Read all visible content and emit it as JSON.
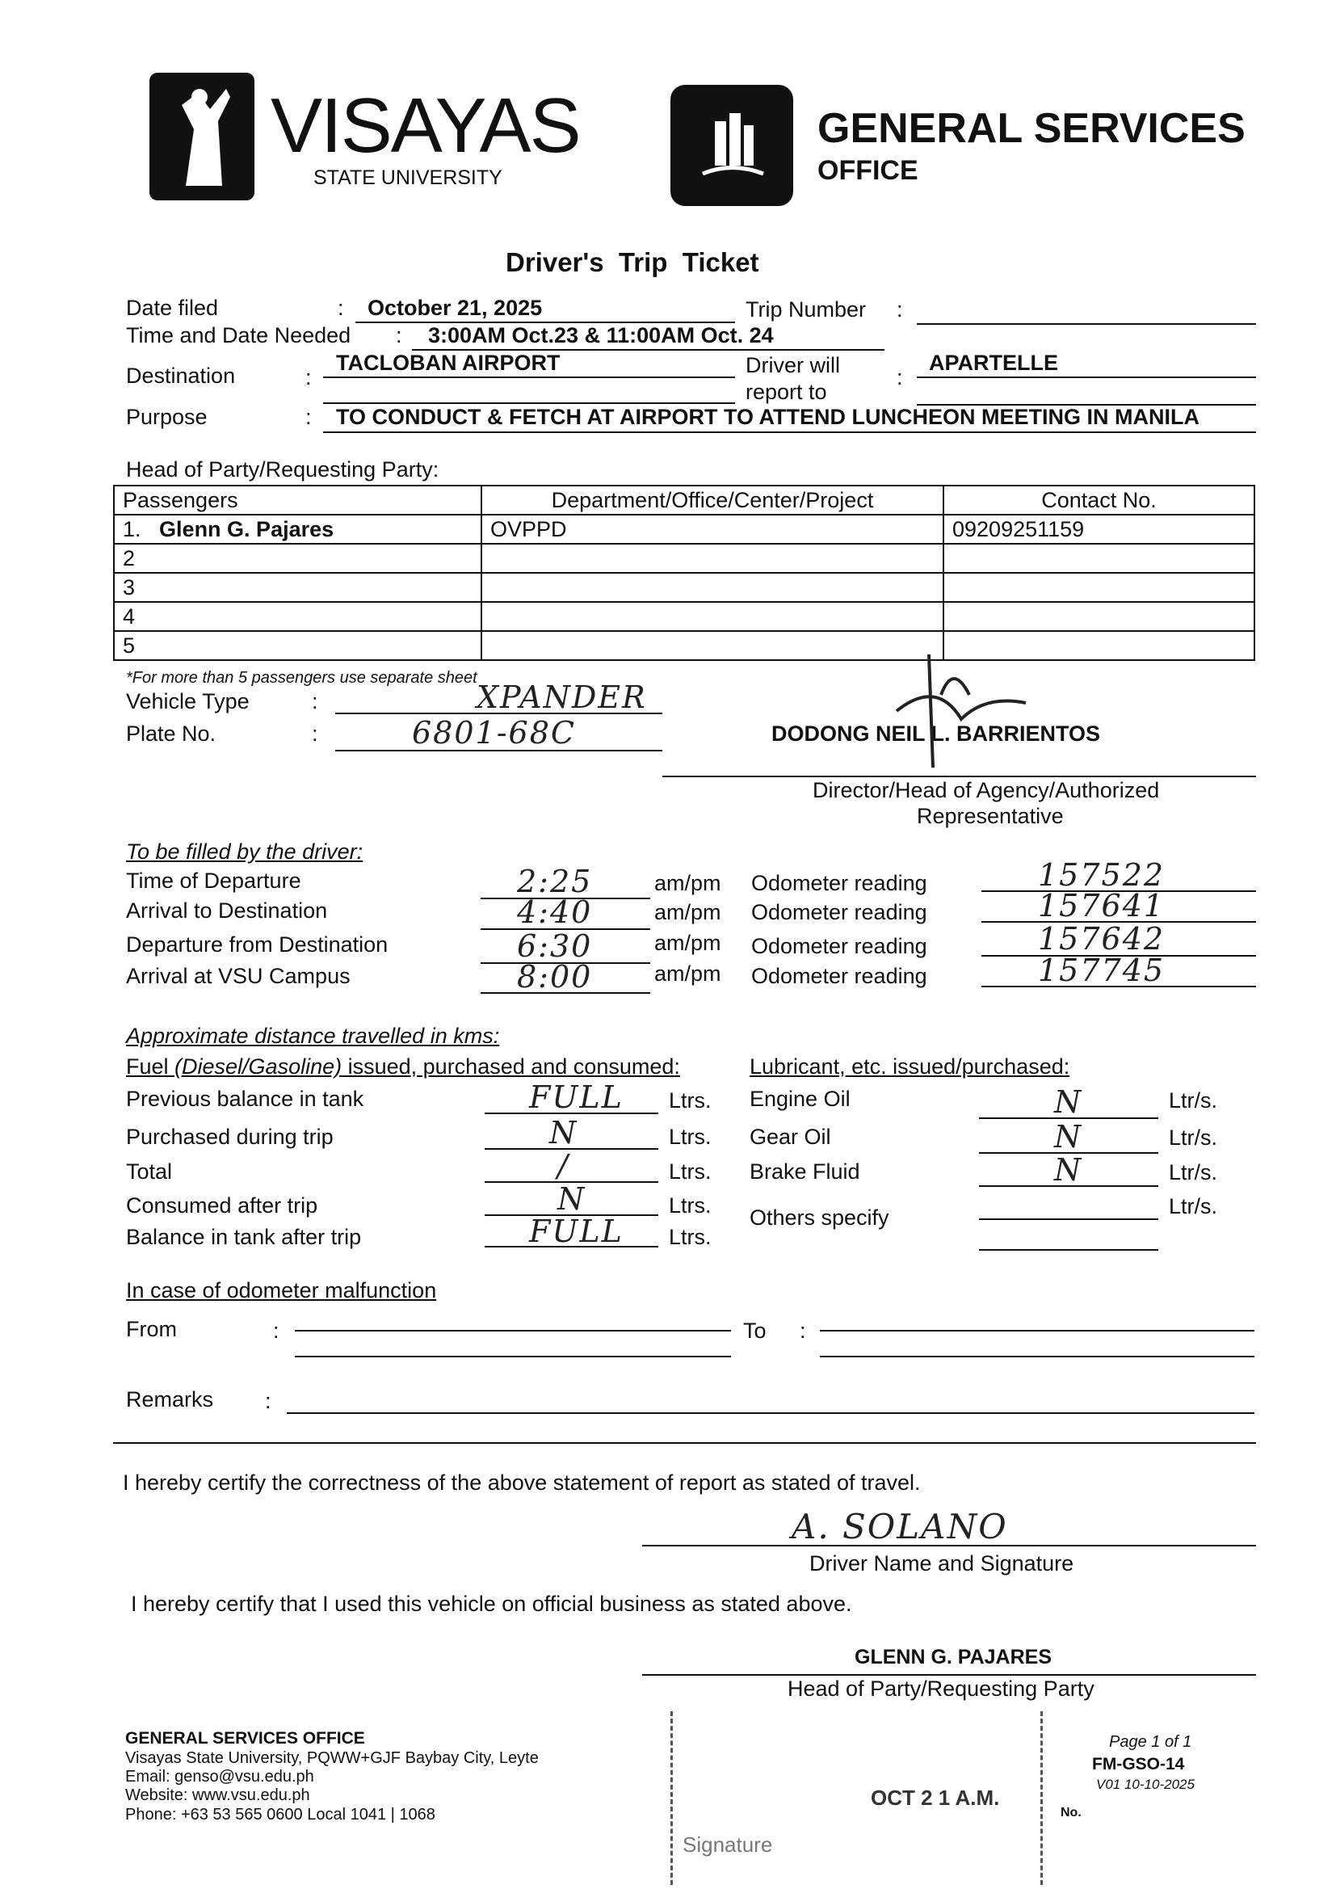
{
  "header": {
    "university_name": "VISAYAS",
    "university_sub": "STATE UNIVERSITY",
    "office_name": "GENERAL SERVICES",
    "office_sub": "OFFICE"
  },
  "title": "Driver's  Trip  Ticket",
  "request": {
    "date_filed_label": "Date filed",
    "date_filed": "October 21, 2025",
    "trip_number_label": "Trip Number",
    "trip_number": "",
    "time_needed_label": "Time and Date Needed",
    "time_needed": "3:00AM Oct.23 & 11:00AM Oct. 24",
    "destination_label": "Destination",
    "destination": "TACLOBAN AIRPORT",
    "report_to_label_1": "Driver will",
    "report_to_label_2": "report to",
    "report_to": "APARTELLE",
    "purpose_label": "Purpose",
    "purpose": "TO CONDUCT & FETCH AT AIRPORT TO ATTEND LUNCHEON MEETING IN MANILA",
    "colon": ":"
  },
  "passengers": {
    "heading": "Head of Party/Requesting Party:",
    "columns": [
      "Passengers",
      "Department/Office/Center/Project",
      "Contact No."
    ],
    "rows": [
      {
        "no": "1.",
        "name": "Glenn G. Pajares",
        "dept": "OVPPD",
        "contact": "09209251159"
      },
      {
        "no": "2",
        "name": "",
        "dept": "",
        "contact": ""
      },
      {
        "no": "3",
        "name": "",
        "dept": "",
        "contact": ""
      },
      {
        "no": "4",
        "name": "",
        "dept": "",
        "contact": ""
      },
      {
        "no": "5",
        "name": "",
        "dept": "",
        "contact": ""
      }
    ],
    "note": "*For more than 5 passengers use separate sheet"
  },
  "vehicle": {
    "type_label": "Vehicle Type",
    "type": "XPANDER",
    "plate_label": "Plate No.",
    "plate": "6801-68C"
  },
  "approver": {
    "name": "DODONG NEIL L. BARRIENTOS",
    "title_1": "Director/Head of Agency/Authorized",
    "title_2": "Representative"
  },
  "driver_section": {
    "heading": "To be filled by the driver:",
    "ampm": "am/pm",
    "odometer_label": "Odometer reading",
    "rows": [
      {
        "label": "Time of Departure",
        "time": "2:25",
        "odometer": "157522"
      },
      {
        "label": "Arrival to Destination",
        "time": "4:40",
        "odometer": "157641"
      },
      {
        "label": "Departure from Destination",
        "time": "6:30",
        "odometer": "157642"
      },
      {
        "label": "Arrival at VSU Campus",
        "time": "8:00",
        "odometer": "157745"
      }
    ]
  },
  "fuel": {
    "distance_heading": "Approximate distance travelled in kms:",
    "fuel_heading_1": "Fuel ",
    "fuel_heading_2": "(Diesel/Gasoline)",
    "fuel_heading_3": " issued, purchased and consumed:",
    "unit": "Ltrs.",
    "rows": [
      {
        "label": "Previous balance in tank",
        "value": "FULL"
      },
      {
        "label": "Purchased during trip",
        "value": "N"
      },
      {
        "label": "Total",
        "value": "/"
      },
      {
        "label": "Consumed after trip",
        "value": "N"
      },
      {
        "label": "Balance in tank after trip",
        "value": "FULL"
      }
    ]
  },
  "lubricant": {
    "heading": "Lubricant, etc. issued/purchased:",
    "unit": "Ltr/s.",
    "rows": [
      {
        "label": "Engine Oil",
        "value": "N"
      },
      {
        "label": "Gear Oil",
        "value": "N"
      },
      {
        "label": "Brake Fluid",
        "value": "N"
      },
      {
        "label": "Others specify",
        "value": ""
      }
    ]
  },
  "malfunction": {
    "heading": "In case of odometer malfunction",
    "from_label": "From",
    "to_label": "To",
    "remarks_label": "Remarks"
  },
  "certification": {
    "driver_statement": "I hereby certify the correctness of the above statement of report as stated of travel.",
    "driver_name": "A. SOLANO",
    "driver_caption": "Driver Name and Signature",
    "party_statement": "I hereby certify that I used this vehicle on official business as stated above.",
    "party_name": "GLENN G. PAJARES",
    "party_caption": "Head of Party/Requesting Party"
  },
  "footer": {
    "office": "GENERAL SERVICES OFFICE",
    "address": "Visayas State University, PQWW+GJF Baybay City, Leyte",
    "email": "Email: genso@vsu.edu.ph",
    "website": "Website: www.vsu.edu.ph",
    "phone": "Phone: +63 53 565 0600 Local 1041 | 1068",
    "stamp_text": "OCT 2 1 A.M.",
    "stamp_sig": "Signature",
    "stamp_no": "No.",
    "page": "Page 1 of 1",
    "form_code": "FM-GSO-14",
    "version": "V01 10-10-2025"
  }
}
